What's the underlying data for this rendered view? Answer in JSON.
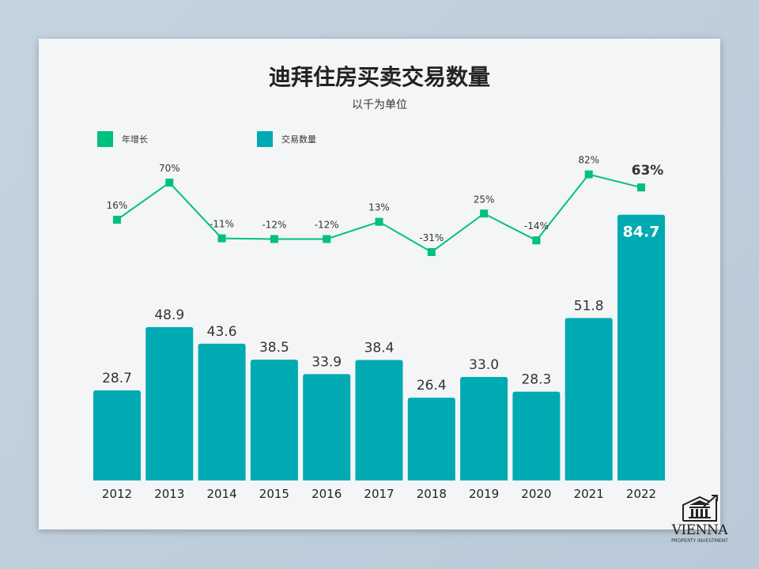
{
  "title": "迪拜住房买卖交易数量",
  "subtitle": "以千为单位",
  "colors": {
    "growth": "#00c07f",
    "volume": "#00aab2"
  },
  "logo": {
    "name": "VIENNA",
    "tagline": "PROPERTY INVESTMENT"
  },
  "chart_data": {
    "type": "bar",
    "categories": [
      "2012",
      "2013",
      "2014",
      "2015",
      "2016",
      "2017",
      "2018",
      "2019",
      "2020",
      "2021",
      "2022"
    ],
    "series": [
      {
        "name": "交易数量",
        "type": "bar",
        "values": [
          28.7,
          48.9,
          43.6,
          38.5,
          33.9,
          38.4,
          26.4,
          33.0,
          28.3,
          51.8,
          84.7
        ],
        "labels": [
          "28.7",
          "48.9",
          "43.6",
          "38.5",
          "33.9",
          "38.4",
          "26.4",
          "33.0",
          "28.3",
          "51.8",
          "84.7"
        ]
      },
      {
        "name": "年增长",
        "type": "line",
        "values": [
          16,
          70,
          -11,
          -12,
          -12,
          13,
          -31,
          25,
          -14,
          82,
          63
        ],
        "labels": [
          "16%",
          "70%",
          "-11%",
          "-12%",
          "-12%",
          "13%",
          "-31%",
          "25%",
          "-14%",
          "82%",
          "63%"
        ]
      }
    ],
    "legend": [
      "年增长",
      "交易数量"
    ],
    "legend_position": "top-left",
    "grid": false
  }
}
